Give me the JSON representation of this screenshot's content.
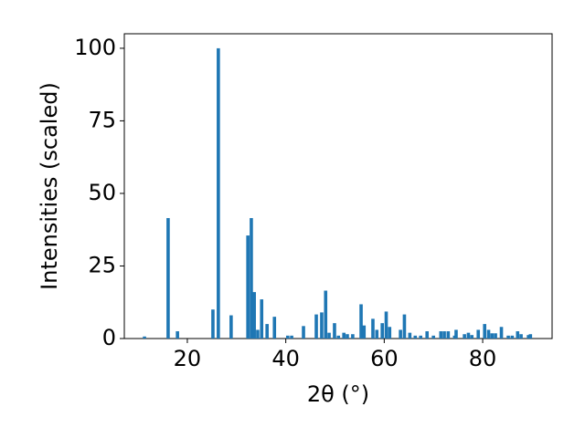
{
  "chart_data": {
    "type": "bar",
    "x_label": "2θ (°)",
    "y_label": "Intensities (scaled)",
    "color": "#1f77b4",
    "x": [
      11.3,
      16.1,
      18.0,
      25.2,
      26.3,
      28.9,
      32.3,
      33.0,
      33.6,
      34.3,
      35.1,
      36.2,
      37.7,
      40.4,
      41.2,
      43.6,
      46.2,
      47.3,
      48.1,
      48.8,
      49.9,
      50.7,
      51.8,
      52.5,
      53.6,
      55.3,
      55.9,
      57.7,
      58.5,
      59.6,
      60.4,
      61.1,
      63.3,
      64.1,
      65.2,
      66.3,
      67.4,
      68.7,
      70.0,
      71.5,
      72.2,
      73.0,
      74.3,
      74.6,
      76.3,
      77.1,
      77.8,
      79.1,
      80.4,
      81.2,
      81.9,
      82.6,
      83.8,
      85.2,
      86.0,
      87.1,
      87.8,
      89.3,
      89.7
    ],
    "values": [
      0.7,
      41.5,
      2.5,
      10,
      100,
      8,
      35.5,
      41.5,
      16,
      3,
      13.5,
      5,
      7.5,
      1,
      1,
      4.3,
      8.3,
      9,
      16.5,
      2,
      5.3,
      1,
      2,
      1.5,
      1.5,
      11.8,
      4.5,
      6.8,
      3,
      5.3,
      9.3,
      4,
      3,
      8.3,
      2,
      1,
      1,
      2.5,
      1,
      2.5,
      2.5,
      2.5,
      1,
      3,
      1.5,
      2,
      1.2,
      3,
      5,
      3,
      1.8,
      1.8,
      4,
      1,
      1,
      2.5,
      1.5,
      1.2,
      1.5
    ],
    "xlim": [
      7.2,
      94.1
    ],
    "ylim": [
      0,
      105
    ],
    "xticks": [
      20,
      40,
      60,
      80
    ],
    "yticks": [
      0,
      25,
      50,
      75,
      100
    ]
  }
}
